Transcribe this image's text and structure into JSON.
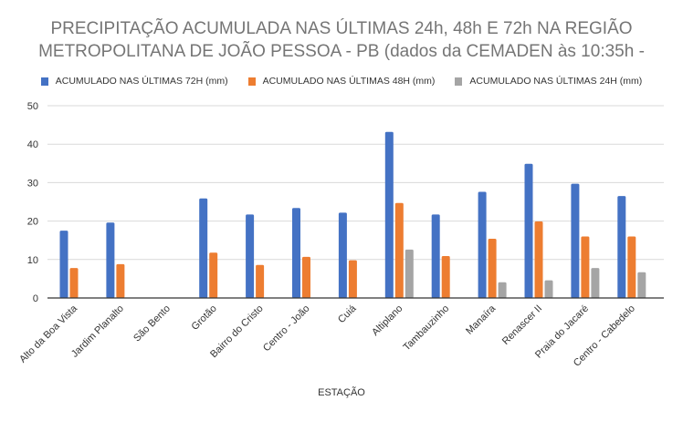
{
  "chart_data": {
    "type": "bar",
    "title_lines": [
      "PRECIPITAÇÃO ACUMULADA NAS ÚLTIMAS 24h, 48h E 72h NA REGIÃO",
      "METROPOLITANA DE JOÃO PESSOA - PB (dados da CEMADEN às 10:35h -"
    ],
    "xlabel": "ESTAÇÃO",
    "ylabel": "",
    "ylim": [
      0,
      50
    ],
    "yticks": [
      0,
      10,
      20,
      30,
      40,
      50
    ],
    "grid": true,
    "legend_position": "top",
    "categories": [
      "Alto da Boa Vista",
      "Jardim Planalto",
      "São Bento",
      "Grotão",
      "Bairro do Cristo",
      "Centro - João",
      "Cuiá",
      "Altiplano",
      "Tambauzinho",
      "Manaíra",
      "Renascer II",
      "Praia do Jacaré",
      "Centro - Cabedelo"
    ],
    "series": [
      {
        "name": "ACUMULADO NAS ÚLTIMAS 72H (mm)",
        "color": "#4472C4",
        "values": [
          17.5,
          19.6,
          0,
          25.9,
          21.7,
          23.4,
          22.2,
          43.2,
          21.7,
          27.6,
          34.9,
          29.7,
          26.5
        ]
      },
      {
        "name": "ACUMULADO NAS ÚLTIMAS 48H (mm)",
        "color": "#ED7D31",
        "values": [
          7.8,
          8.8,
          0,
          11.8,
          8.6,
          10.7,
          9.8,
          24.7,
          10.9,
          15.4,
          19.9,
          16.0,
          16.0
        ]
      },
      {
        "name": "ACUMULADO NAS ÚLTIMAS 24H (mm)",
        "color": "#A5A5A5",
        "values": [
          0,
          0,
          0,
          0,
          0,
          0,
          0,
          12.6,
          0,
          4.1,
          4.6,
          7.8,
          6.7
        ]
      }
    ]
  }
}
